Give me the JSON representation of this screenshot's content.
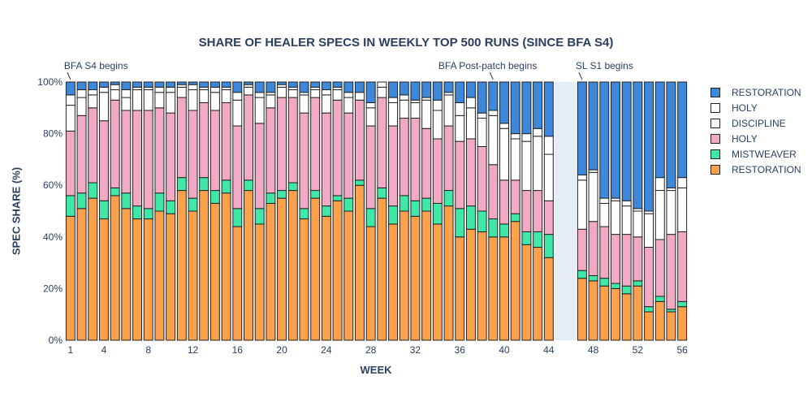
{
  "chart_data": {
    "type": "bar",
    "stacked": true,
    "title": "SHARE OF HEALER SPECS IN WEEKLY TOP 500 RUNS (SINCE BFA S4)",
    "xlabel": "WEEK",
    "ylabel": "SPEC SHARE (%)",
    "x_range": [
      0.5,
      56.5
    ],
    "ylim": [
      0,
      100
    ],
    "x_ticks": [
      1,
      4,
      8,
      12,
      16,
      20,
      24,
      28,
      32,
      36,
      40,
      44,
      48,
      52,
      56
    ],
    "y_ticks": [
      "0%",
      "20%",
      "40%",
      "60%",
      "80%",
      "100%"
    ],
    "shaded_weeks": [
      45,
      46
    ],
    "legend_position": "right",
    "weeks": [
      1,
      2,
      3,
      4,
      5,
      6,
      7,
      8,
      9,
      10,
      11,
      12,
      13,
      14,
      15,
      16,
      17,
      18,
      19,
      20,
      21,
      22,
      23,
      24,
      25,
      26,
      27,
      28,
      29,
      30,
      31,
      32,
      33,
      34,
      35,
      36,
      37,
      38,
      39,
      40,
      41,
      42,
      43,
      44,
      47,
      48,
      49,
      50,
      51,
      52,
      53,
      54,
      55,
      56
    ],
    "series": [
      {
        "name": "RESTORATION",
        "color": "#fba04b",
        "values": [
          48,
          51,
          55,
          47,
          56,
          51,
          47,
          47,
          50,
          49,
          58,
          50,
          58,
          53,
          57,
          44,
          58,
          45,
          53,
          55,
          58,
          47,
          55,
          48,
          54,
          50,
          60,
          44,
          55,
          45,
          50,
          48,
          50,
          45,
          52,
          40,
          43,
          42,
          40,
          40,
          46,
          37,
          36,
          32,
          24,
          23,
          21,
          20,
          18,
          21,
          11,
          15,
          11,
          13
        ]
      },
      {
        "name": "MISTWEAVER",
        "color": "#3fe8a6",
        "values": [
          8,
          6,
          6,
          7,
          3,
          6,
          5,
          4,
          7,
          5,
          5,
          5,
          5,
          5,
          5,
          7,
          4,
          6,
          4,
          3,
          3,
          4,
          3,
          4,
          2,
          5,
          2,
          7,
          4,
          7,
          6,
          6,
          5,
          8,
          6,
          11,
          9,
          8,
          7,
          5,
          3,
          5,
          6,
          9,
          3,
          2,
          3,
          2,
          3,
          2,
          2,
          2,
          1,
          2
        ]
      },
      {
        "name": "HOLY",
        "color": "#f2a9c6",
        "values": [
          25,
          30,
          29,
          31,
          34,
          32,
          37,
          38,
          33,
          34,
          31,
          34,
          29,
          31,
          30,
          32,
          33,
          33,
          33,
          36,
          33,
          37,
          36,
          36,
          37,
          33,
          31,
          32,
          35,
          31,
          30,
          32,
          27,
          25,
          25,
          26,
          26,
          25,
          21,
          17,
          13,
          16,
          16,
          13,
          16,
          21,
          20,
          19,
          20,
          17,
          23,
          22,
          29,
          27
        ]
      },
      {
        "name": "DISCIPLINE",
        "color": "#ffffff",
        "values": [
          10,
          7,
          5,
          11,
          4,
          5,
          8,
          8,
          6,
          8,
          4,
          8,
          5,
          7,
          5,
          10,
          3,
          10,
          5,
          4,
          3,
          7,
          3,
          7,
          4,
          6,
          3,
          7,
          4,
          9,
          7,
          6,
          11,
          11,
          12,
          10,
          12,
          11,
          19,
          20,
          16,
          19,
          21,
          18,
          19,
          19,
          9,
          13,
          11,
          10,
          13,
          19,
          17,
          17
        ]
      },
      {
        "name": "HOLY",
        "color": "#ffffff",
        "values": [
          4,
          3,
          2,
          2,
          2,
          3,
          1,
          1,
          2,
          2,
          1,
          2,
          1,
          2,
          1,
          3,
          1,
          2,
          1,
          1,
          1,
          1,
          1,
          2,
          1,
          2,
          0,
          2,
          2,
          2,
          2,
          1,
          1,
          4,
          1,
          5,
          4,
          2,
          2,
          2,
          2,
          3,
          3,
          7,
          2,
          1,
          2,
          1,
          2,
          1,
          1,
          5,
          1,
          4
        ]
      },
      {
        "name": "RESTORATION",
        "color": "#3d88db",
        "values": [
          5,
          3,
          3,
          2,
          1,
          3,
          2,
          2,
          2,
          2,
          1,
          1,
          2,
          2,
          2,
          4,
          1,
          4,
          4,
          1,
          2,
          4,
          2,
          3,
          2,
          4,
          4,
          8,
          0,
          6,
          5,
          7,
          6,
          7,
          4,
          8,
          6,
          12,
          11,
          16,
          20,
          20,
          18,
          21,
          36,
          34,
          45,
          45,
          46,
          49,
          50,
          37,
          41,
          37
        ]
      }
    ],
    "annotations": [
      {
        "text": "BFA S4 begins",
        "week": 1
      },
      {
        "text": "BFA Post-patch begins",
        "week": 39
      },
      {
        "text": "SL S1 begins",
        "week": 47
      }
    ]
  }
}
